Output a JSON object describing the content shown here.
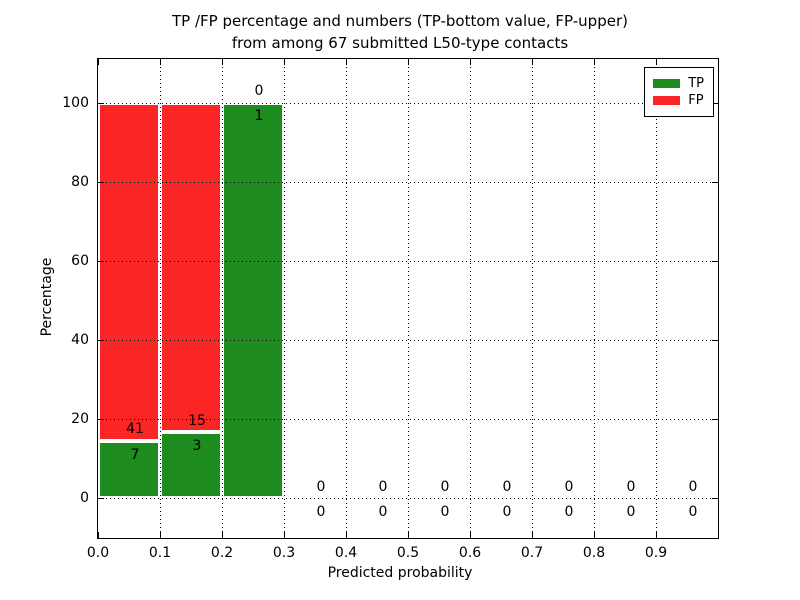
{
  "chart_data": {
    "type": "bar",
    "stacked_percentage": true,
    "title_lines": [
      "TP /FP percentage and numbers (TP-bottom value, FP-upper)",
      "from among 67 submitted L50-type contacts"
    ],
    "xlabel": "Predicted probability",
    "ylabel": "Percentage",
    "xlim": [
      0.0,
      1.0
    ],
    "ylim": [
      -10,
      111
    ],
    "bin_edges": [
      0.0,
      0.1,
      0.2,
      0.3,
      0.4,
      0.5,
      0.6,
      0.7,
      0.8,
      0.9,
      1.0
    ],
    "x_tick_values": [
      0.0,
      0.1,
      0.2,
      0.3,
      0.4,
      0.5,
      0.6,
      0.7,
      0.8,
      0.9
    ],
    "x_tick_labels": [
      "0.0",
      "0.1",
      "0.2",
      "0.3",
      "0.4",
      "0.5",
      "0.6",
      "0.7",
      "0.8",
      "0.9"
    ],
    "y_tick_values": [
      0,
      20,
      40,
      60,
      80,
      100
    ],
    "y_tick_labels": [
      "0",
      "20",
      "40",
      "60",
      "80",
      "100"
    ],
    "grid": "dotted",
    "legend_position": "upper right",
    "total_contacts": 67,
    "series": [
      {
        "name": "TP",
        "color": "#1e8b1e",
        "counts": [
          7,
          3,
          1,
          0,
          0,
          0,
          0,
          0,
          0,
          0
        ]
      },
      {
        "name": "FP",
        "color": "#fa2626",
        "counts": [
          41,
          15,
          0,
          0,
          0,
          0,
          0,
          0,
          0,
          0
        ]
      }
    ]
  }
}
